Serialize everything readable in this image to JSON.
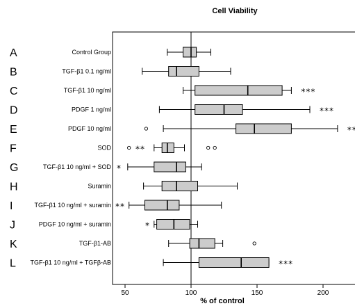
{
  "chart_data": {
    "type": "box",
    "title": "Cell Viability",
    "xlabel": "% of control",
    "ylabel": "",
    "xlim": [
      40,
      225
    ],
    "xticks": [
      50,
      100,
      150,
      200
    ],
    "reference_line": 100,
    "grid": false,
    "legend": "none",
    "colors": {
      "box_fill": "#cccccc",
      "stroke": "#000000"
    },
    "rows": [
      {
        "letter": "A",
        "label": "Control Group",
        "whisker_low": 82,
        "q1": 94,
        "median": 100,
        "q3": 104,
        "whisker_high": 115,
        "outliers": [],
        "significance": ""
      },
      {
        "letter": "B",
        "label": "TGF-β1 0.1 ng/ml",
        "whisker_low": 63,
        "q1": 83,
        "median": 89,
        "q3": 106,
        "whisker_high": 130,
        "outliers": [],
        "significance": ""
      },
      {
        "letter": "C",
        "label": "TGF-β1 10 ng/ml",
        "whisker_low": 94,
        "q1": 103,
        "median": 143,
        "q3": 169,
        "whisker_high": 176,
        "outliers": [],
        "significance": "***"
      },
      {
        "letter": "D",
        "label": "PDGF 1 ng/ml",
        "whisker_low": 76,
        "q1": 103,
        "median": 125,
        "q3": 139,
        "whisker_high": 190,
        "outliers": [],
        "significance": "***"
      },
      {
        "letter": "E",
        "label": "PDGF 10 ng/ml",
        "whisker_low": 79,
        "q1": 134,
        "median": 148,
        "q3": 176,
        "whisker_high": 211,
        "outliers": [
          66
        ],
        "significance": "***"
      },
      {
        "letter": "F",
        "label": "SOD",
        "whisker_low": 72,
        "q1": 78,
        "median": 82,
        "q3": 87,
        "whisker_high": 95,
        "outliers": [
          53,
          113,
          118
        ],
        "significance": "**"
      },
      {
        "letter": "G",
        "label": "TGF-β1 10 ng/ml + SOD",
        "whisker_low": 52,
        "q1": 72,
        "median": 89,
        "q3": 96,
        "whisker_high": 108,
        "outliers": [],
        "significance": "*"
      },
      {
        "letter": "H",
        "label": "Suramin",
        "whisker_low": 64,
        "q1": 78,
        "median": 89,
        "q3": 105,
        "whisker_high": 135,
        "outliers": [],
        "significance": ""
      },
      {
        "letter": "I",
        "label": "TGF-β1 10 ng/ml + suramin",
        "whisker_low": 53,
        "q1": 65,
        "median": 82,
        "q3": 91,
        "whisker_high": 123,
        "outliers": [],
        "significance": "**"
      },
      {
        "letter": "J",
        "label": "PDGF 10 ng/ml + suramin",
        "whisker_low": 72,
        "q1": 74,
        "median": 87,
        "q3": 99,
        "whisker_high": 105,
        "outliers": [],
        "significance": "*"
      },
      {
        "letter": "K",
        "label": "TGF-β1-AB",
        "whisker_low": 83,
        "q1": 99,
        "median": 106,
        "q3": 118,
        "whisker_high": 124,
        "outliers": [
          148
        ],
        "significance": ""
      },
      {
        "letter": "L",
        "label": "TGF-β1 10 ng/ml + TGFβ-AB",
        "whisker_low": 79,
        "q1": 106,
        "median": 138,
        "q3": 159,
        "whisker_high": 159,
        "outliers": [],
        "significance": "***"
      }
    ]
  }
}
